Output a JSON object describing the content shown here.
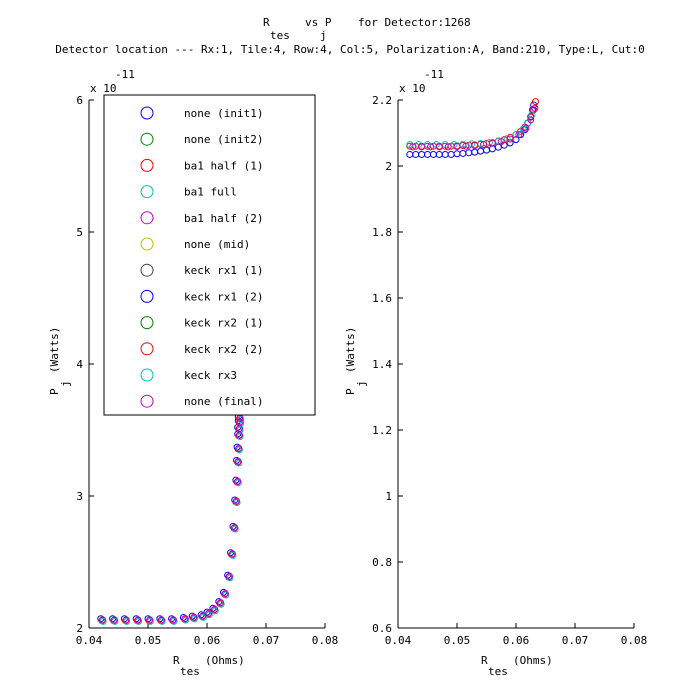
{
  "title": {
    "line1_prefix": "R",
    "line1_sub1": "tes",
    "line1_mid": "vs P",
    "line1_sub2": "j",
    "line1_suffix": "for Detector:1268",
    "line2": "Detector location --- Rx:1, Tile:4, Row:4, Col:5, Polarization:A, Band:210, Type:L, Cut:0"
  },
  "legend": {
    "placement": "upper-left of left panel",
    "entries": [
      {
        "label": "none (init1)",
        "color": "#0000ff"
      },
      {
        "label": "none (init2)",
        "color": "#008000"
      },
      {
        "label": "ba1 half (1)",
        "color": "#ff0000"
      },
      {
        "label": "ba1 full",
        "color": "#00bfbf"
      },
      {
        "label": "ba1 half (2)",
        "color": "#bf00bf"
      },
      {
        "label": "none (mid)",
        "color": "#bfbf00"
      },
      {
        "label": "keck rx1 (1)",
        "color": "#404040"
      },
      {
        "label": "keck rx1 (2)",
        "color": "#0000ff"
      },
      {
        "label": "keck rx2 (1)",
        "color": "#008000"
      },
      {
        "label": "keck rx2 (2)",
        "color": "#ff0000"
      },
      {
        "label": "keck rx3",
        "color": "#00bfbf"
      },
      {
        "label": "none (final)",
        "color": "#bf00bf"
      }
    ]
  },
  "chart_data": [
    {
      "type": "scatter",
      "panel": "left",
      "xlabel_main": "R",
      "xlabel_sub": "tes",
      "xlabel_unit": "(Ohms)",
      "ylabel_main": "P",
      "ylabel_sub": "j",
      "ylabel_unit": "(Watts)",
      "exponent_base": "x 10",
      "exponent_power": "-11",
      "xlim": [
        0.04,
        0.08
      ],
      "ylim": [
        2,
        6
      ],
      "xticks": [
        0.04,
        0.05,
        0.06,
        0.07,
        0.08
      ],
      "xtick_labels": [
        "0.04",
        "0.05",
        "0.06",
        "0.07",
        "0.08"
      ],
      "yticks": [
        2,
        3,
        4,
        5,
        6
      ],
      "ytick_labels": [
        "2",
        "3",
        "4",
        "5",
        "6"
      ],
      "series_note": "all legend series overlap; curve drawn with blue, red, cyan, magenta markers",
      "x": [
        0.042,
        0.044,
        0.046,
        0.048,
        0.05,
        0.052,
        0.054,
        0.056,
        0.0575,
        0.059,
        0.06,
        0.061,
        0.062,
        0.0628,
        0.0635,
        0.064,
        0.0644,
        0.0647,
        0.0649,
        0.065,
        0.0651,
        0.0652,
        0.0652,
        0.0653,
        0.0653
      ],
      "y": [
        2.05,
        2.05,
        2.05,
        2.05,
        2.05,
        2.05,
        2.05,
        2.06,
        2.07,
        2.08,
        2.1,
        2.13,
        2.18,
        2.25,
        2.38,
        2.55,
        2.75,
        2.95,
        3.1,
        3.25,
        3.35,
        3.45,
        3.5,
        3.55,
        3.58
      ]
    },
    {
      "type": "scatter",
      "panel": "right",
      "xlabel_main": "R",
      "xlabel_sub": "tes",
      "xlabel_unit": "(Ohms)",
      "ylabel_main": "P",
      "ylabel_sub": "j",
      "ylabel_unit": "(Watts)",
      "exponent_base": "x 10",
      "exponent_power": "-11",
      "xlim": [
        0.04,
        0.08
      ],
      "ylim": [
        0.6,
        2.2
      ],
      "xticks": [
        0.04,
        0.05,
        0.06,
        0.07,
        0.08
      ],
      "xtick_labels": [
        "0.04",
        "0.05",
        "0.06",
        "0.07",
        "0.08"
      ],
      "yticks": [
        0.6,
        0.8,
        1.0,
        1.2,
        1.4,
        1.6,
        1.8,
        2.0,
        2.2
      ],
      "ytick_labels": [
        "0.6",
        "0.8",
        "1",
        "1.2",
        "1.4",
        "1.6",
        "1.8",
        "2",
        "2.2"
      ],
      "series": [
        {
          "name": "none (init1)",
          "color": "#0000ff",
          "x": [
            0.042,
            0.043,
            0.044,
            0.045,
            0.046,
            0.047,
            0.048,
            0.049,
            0.05,
            0.051,
            0.052,
            0.053,
            0.054,
            0.055,
            0.056,
            0.057,
            0.058,
            0.059,
            0.06,
            0.0608,
            0.0615,
            0.062,
            0.0625,
            0.0628,
            0.063
          ],
          "y": [
            2.035,
            2.035,
            2.035,
            2.035,
            2.035,
            2.035,
            2.035,
            2.035,
            2.037,
            2.038,
            2.04,
            2.042,
            2.045,
            2.048,
            2.052,
            2.057,
            2.063,
            2.07,
            2.08,
            2.095,
            2.11,
            2.13,
            2.15,
            2.17,
            2.185
          ]
        },
        {
          "name": "ba1 half (1)",
          "color": "#ff0000",
          "x": [
            0.042,
            0.043,
            0.044,
            0.045,
            0.046,
            0.047,
            0.048,
            0.049,
            0.05,
            0.051,
            0.052,
            0.053,
            0.054,
            0.055,
            0.056,
            0.057,
            0.058,
            0.059,
            0.06,
            0.0608,
            0.0615,
            0.062,
            0.0625,
            0.063,
            0.0633
          ],
          "y": [
            2.06,
            2.06,
            2.06,
            2.06,
            2.06,
            2.06,
            2.06,
            2.06,
            2.061,
            2.062,
            2.063,
            2.064,
            2.066,
            2.068,
            2.071,
            2.075,
            2.08,
            2.087,
            2.095,
            2.105,
            2.118,
            2.13,
            2.148,
            2.17,
            2.195
          ]
        },
        {
          "name": "ba1 full",
          "color": "#00bfbf",
          "x": [
            0.042,
            0.0435,
            0.045,
            0.0465,
            0.048,
            0.0495,
            0.051,
            0.0525,
            0.054,
            0.0555,
            0.057,
            0.0585,
            0.06,
            0.0612,
            0.062,
            0.0627
          ],
          "y": [
            2.065,
            2.065,
            2.065,
            2.065,
            2.065,
            2.065,
            2.066,
            2.067,
            2.068,
            2.071,
            2.076,
            2.083,
            2.095,
            2.112,
            2.13,
            2.155
          ]
        },
        {
          "name": "ba1 half (2)",
          "color": "#bf00bf",
          "x": [
            0.0425,
            0.044,
            0.0455,
            0.047,
            0.0485,
            0.05,
            0.0515,
            0.053,
            0.0545,
            0.056,
            0.0575,
            0.059,
            0.0605,
            0.0617,
            0.0625,
            0.0632
          ],
          "y": [
            2.058,
            2.058,
            2.058,
            2.058,
            2.058,
            2.059,
            2.06,
            2.062,
            2.065,
            2.069,
            2.074,
            2.082,
            2.095,
            2.115,
            2.14,
            2.175
          ]
        }
      ]
    }
  ]
}
